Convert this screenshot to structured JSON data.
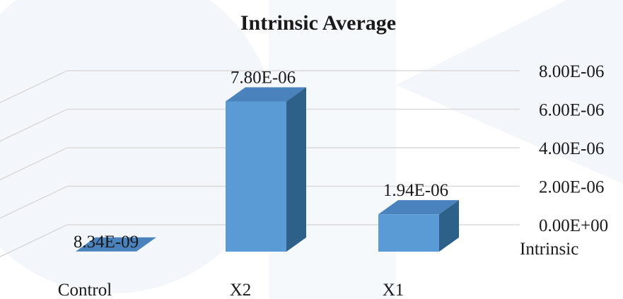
{
  "chart_data": {
    "type": "bar",
    "title": "Intrinsic Average",
    "categories": [
      "Control",
      "X2",
      "X1"
    ],
    "series": [
      {
        "name": "Intrinsic",
        "values": [
          8.34e-09,
          7.8e-06,
          1.94e-06
        ]
      }
    ],
    "data_labels": [
      "8.34E-09",
      "7.80E-06",
      "1.94E-06"
    ],
    "y_ticks": [
      0,
      2e-06,
      4e-06,
      6e-06,
      8e-06
    ],
    "y_tick_labels": [
      "0.00E+00",
      "2.00E-06",
      "4.00E-06",
      "6.00E-06",
      "8.00E-06"
    ],
    "ylim": [
      0,
      8e-06
    ],
    "y_axis_side": "right",
    "depth_axis_label": "Intrinsic",
    "grid": true,
    "three_d": true,
    "colors": {
      "bar_front": "#5b9bd5",
      "bar_side": "#2e6189",
      "bar_top": "#4a82bd",
      "grid": "#d9d9d9",
      "watermark": "#eef3f8"
    }
  }
}
